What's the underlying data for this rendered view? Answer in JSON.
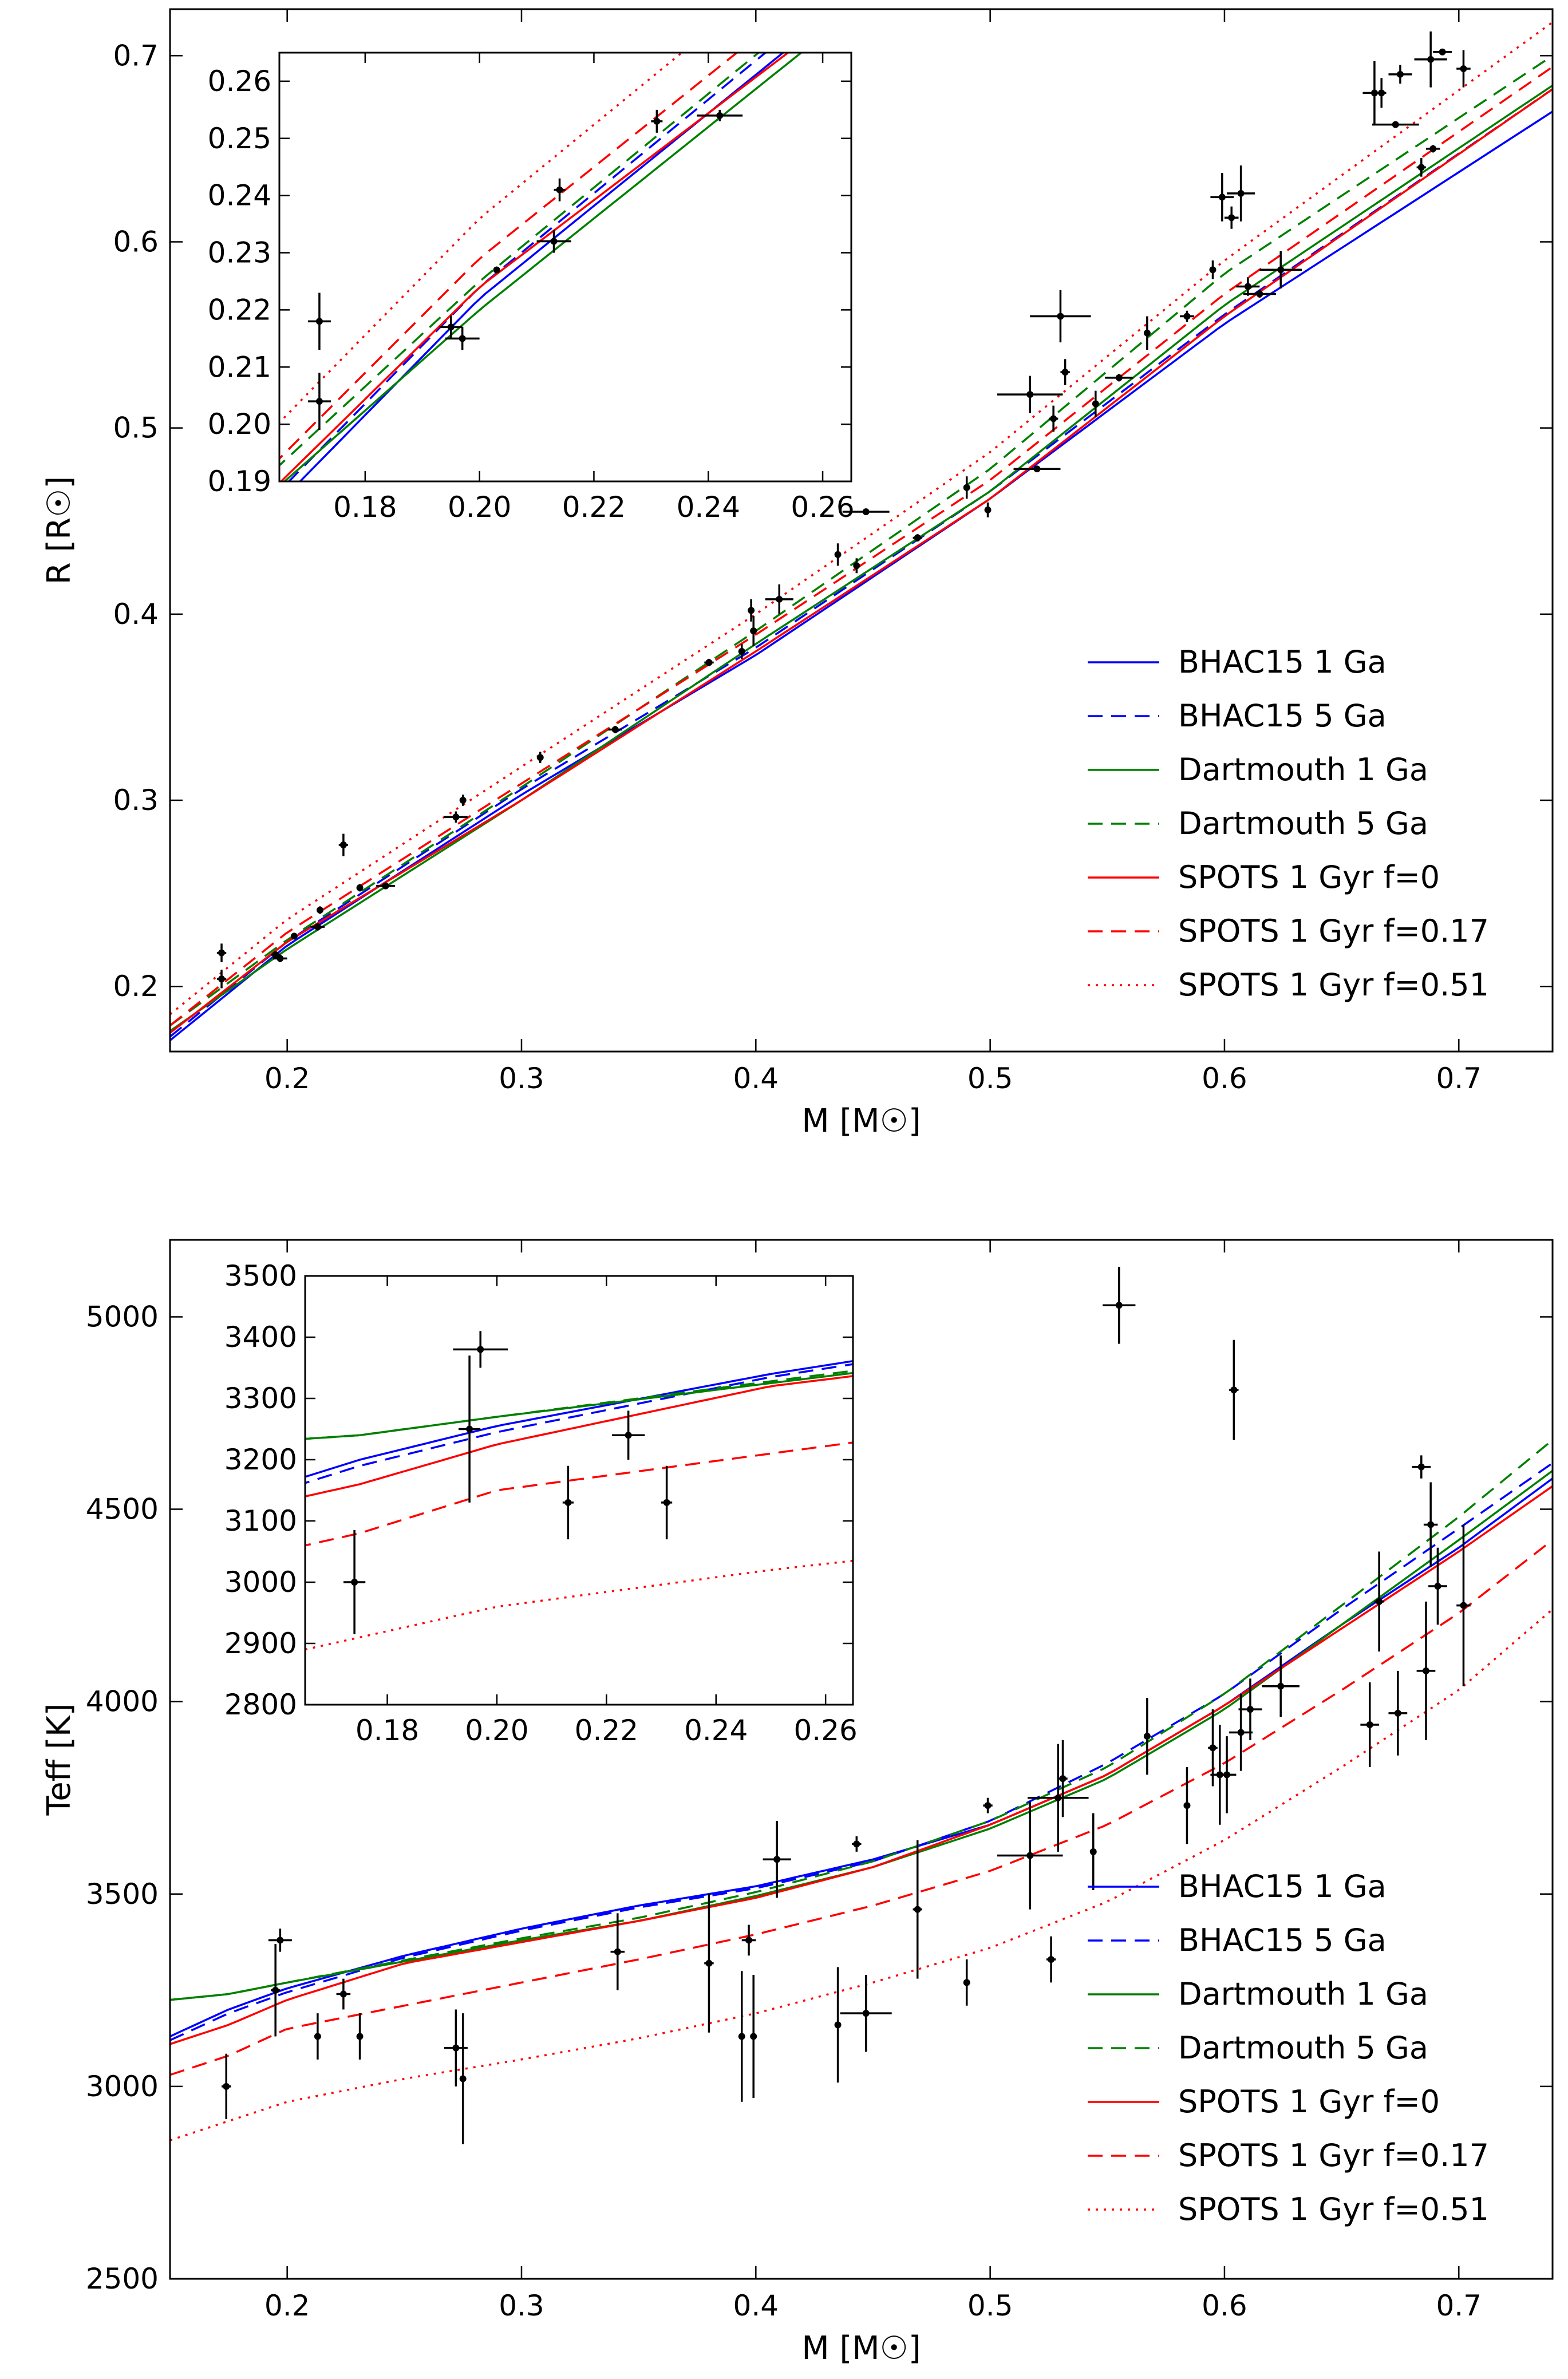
{
  "chart_data": [
    {
      "type": "line",
      "xlabel": "M [M☉]",
      "ylabel": "R [R☉]",
      "xlim": [
        0.15,
        0.74
      ],
      "ylim": [
        0.165,
        0.725
      ],
      "xticks": [
        "0.2",
        "0.3",
        "0.4",
        "0.5",
        "0.6",
        "0.7"
      ],
      "yticks": [
        "0.2",
        "0.3",
        "0.4",
        "0.5",
        "0.6",
        "0.7"
      ],
      "legend_position": "lower-right",
      "legend": [
        "BHAC15 1 Ga",
        "BHAC15 5 Ga",
        "Dartmouth 1 Ga",
        "Dartmouth 5 Ga",
        "SPOTS 1 Gyr f=0",
        "SPOTS 1 Gyr f=0.17",
        "SPOTS 1 Gyr f=0.51"
      ],
      "series": [
        {
          "color": "#0000ff",
          "style": "solid",
          "x": [
            0.15,
            0.2,
            0.3,
            0.4,
            0.5,
            0.6,
            0.74
          ],
          "y": [
            0.171,
            0.222,
            0.303,
            0.378,
            0.462,
            0.556,
            0.67
          ]
        },
        {
          "color": "#0000ff",
          "style": "dashed",
          "x": [
            0.15,
            0.2,
            0.3,
            0.4,
            0.5,
            0.6,
            0.74
          ],
          "y": [
            0.173,
            0.224,
            0.306,
            0.382,
            0.466,
            0.561,
            0.682
          ]
        },
        {
          "color": "#008000",
          "style": "solid",
          "x": [
            0.15,
            0.2,
            0.3,
            0.4,
            0.5,
            0.6,
            0.74
          ],
          "y": [
            0.176,
            0.22,
            0.3,
            0.384,
            0.466,
            0.566,
            0.684
          ]
        },
        {
          "color": "#008000",
          "style": "dashed",
          "x": [
            0.15,
            0.2,
            0.3,
            0.4,
            0.5,
            0.6,
            0.74
          ],
          "y": [
            0.179,
            0.225,
            0.307,
            0.391,
            0.478,
            0.583,
            0.7
          ]
        },
        {
          "color": "#ff0000",
          "style": "solid",
          "x": [
            0.15,
            0.2,
            0.3,
            0.4,
            0.5,
            0.6,
            0.74
          ],
          "y": [
            0.175,
            0.224,
            0.3,
            0.38,
            0.462,
            0.56,
            0.682
          ]
        },
        {
          "color": "#ff0000",
          "style": "dashed",
          "x": [
            0.15,
            0.2,
            0.3,
            0.4,
            0.5,
            0.6,
            0.74
          ],
          "y": [
            0.179,
            0.229,
            0.309,
            0.389,
            0.472,
            0.572,
            0.694
          ]
        },
        {
          "color": "#ff0000",
          "style": "dotted",
          "x": [
            0.15,
            0.2,
            0.3,
            0.4,
            0.5,
            0.6,
            0.74
          ],
          "y": [
            0.185,
            0.236,
            0.318,
            0.4,
            0.487,
            0.59,
            0.718
          ]
        }
      ],
      "points": [
        {
          "x": 0.172,
          "y": 0.218,
          "ex": 0.002,
          "ey": 0.005
        },
        {
          "x": 0.172,
          "y": 0.204,
          "ex": 0.002,
          "ey": 0.005
        },
        {
          "x": 0.195,
          "y": 0.217,
          "ex": 0.002,
          "ey": 0.002
        },
        {
          "x": 0.197,
          "y": 0.215,
          "ex": 0.003,
          "ey": 0.002
        },
        {
          "x": 0.203,
          "y": 0.227,
          "ex": 0.0,
          "ey": 0.0
        },
        {
          "x": 0.213,
          "y": 0.232,
          "ex": 0.003,
          "ey": 0.002
        },
        {
          "x": 0.214,
          "y": 0.241,
          "ex": 0.001,
          "ey": 0.002
        },
        {
          "x": 0.224,
          "y": 0.276,
          "ex": 0.002,
          "ey": 0.006
        },
        {
          "x": 0.231,
          "y": 0.253,
          "ex": 0.001,
          "ey": 0.002
        },
        {
          "x": 0.242,
          "y": 0.254,
          "ex": 0.004,
          "ey": 0.001
        },
        {
          "x": 0.272,
          "y": 0.291,
          "ex": 0.005,
          "ey": 0.003
        },
        {
          "x": 0.275,
          "y": 0.3,
          "ex": 0.001,
          "ey": 0.003
        },
        {
          "x": 0.308,
          "y": 0.323,
          "ex": 0.001,
          "ey": 0.003
        },
        {
          "x": 0.34,
          "y": 0.338,
          "ex": 0.003,
          "ey": 0.002
        },
        {
          "x": 0.38,
          "y": 0.374,
          "ex": 0.002,
          "ey": 0.002
        },
        {
          "x": 0.394,
          "y": 0.38,
          "ex": 0.001,
          "ey": 0.004
        },
        {
          "x": 0.398,
          "y": 0.402,
          "ex": 0.001,
          "ey": 0.006
        },
        {
          "x": 0.399,
          "y": 0.391,
          "ex": 0.001,
          "ey": 0.008
        },
        {
          "x": 0.41,
          "y": 0.408,
          "ex": 0.006,
          "ey": 0.008
        },
        {
          "x": 0.435,
          "y": 0.432,
          "ex": 0.001,
          "ey": 0.006
        },
        {
          "x": 0.443,
          "y": 0.426,
          "ex": 0.001,
          "ey": 0.004
        },
        {
          "x": 0.447,
          "y": 0.455,
          "ex": 0.01,
          "ey": 0.001
        },
        {
          "x": 0.469,
          "y": 0.441,
          "ex": 0.002,
          "ey": 0.002
        },
        {
          "x": 0.49,
          "y": 0.468,
          "ex": 0.001,
          "ey": 0.006
        },
        {
          "x": 0.499,
          "y": 0.456,
          "ex": 0.001,
          "ey": 0.004
        },
        {
          "x": 0.517,
          "y": 0.518,
          "ex": 0.014,
          "ey": 0.01
        },
        {
          "x": 0.52,
          "y": 0.478,
          "ex": 0.01,
          "ey": 0.001
        },
        {
          "x": 0.527,
          "y": 0.505,
          "ex": 0.002,
          "ey": 0.007
        },
        {
          "x": 0.53,
          "y": 0.56,
          "ex": 0.013,
          "ey": 0.014
        },
        {
          "x": 0.532,
          "y": 0.53,
          "ex": 0.002,
          "ey": 0.007
        },
        {
          "x": 0.545,
          "y": 0.513,
          "ex": 0.001,
          "ey": 0.007
        },
        {
          "x": 0.555,
          "y": 0.527,
          "ex": 0.006,
          "ey": 0.002
        },
        {
          "x": 0.567,
          "y": 0.551,
          "ex": 0.001,
          "ey": 0.009
        },
        {
          "x": 0.584,
          "y": 0.56,
          "ex": 0.003,
          "ey": 0.003
        },
        {
          "x": 0.595,
          "y": 0.585,
          "ex": 0.001,
          "ey": 0.005
        },
        {
          "x": 0.599,
          "y": 0.624,
          "ex": 0.005,
          "ey": 0.013
        },
        {
          "x": 0.603,
          "y": 0.613,
          "ex": 0.003,
          "ey": 0.006
        },
        {
          "x": 0.607,
          "y": 0.626,
          "ex": 0.006,
          "ey": 0.015
        },
        {
          "x": 0.61,
          "y": 0.576,
          "ex": 0.005,
          "ey": 0.005
        },
        {
          "x": 0.615,
          "y": 0.572,
          "ex": 0.007,
          "ey": 0.002
        },
        {
          "x": 0.624,
          "y": 0.585,
          "ex": 0.009,
          "ey": 0.01
        },
        {
          "x": 0.664,
          "y": 0.68,
          "ex": 0.005,
          "ey": 0.017
        },
        {
          "x": 0.667,
          "y": 0.68,
          "ex": 0.002,
          "ey": 0.008
        },
        {
          "x": 0.673,
          "y": 0.663,
          "ex": 0.01,
          "ey": 0.001
        },
        {
          "x": 0.675,
          "y": 0.69,
          "ex": 0.005,
          "ey": 0.005
        },
        {
          "x": 0.684,
          "y": 0.64,
          "ex": 0.002,
          "ey": 0.005
        },
        {
          "x": 0.688,
          "y": 0.698,
          "ex": 0.007,
          "ey": 0.015
        },
        {
          "x": 0.689,
          "y": 0.65,
          "ex": 0.003,
          "ey": 0.002
        },
        {
          "x": 0.693,
          "y": 0.702,
          "ex": 0.004,
          "ey": 0.001
        },
        {
          "x": 0.702,
          "y": 0.693,
          "ex": 0.003,
          "ey": 0.01
        }
      ],
      "inset": {
        "xlim": [
          0.165,
          0.265
        ],
        "ylim": [
          0.19,
          0.265
        ],
        "xticks": [
          "0.18",
          "0.20",
          "0.22",
          "0.24",
          "0.26"
        ],
        "yticks": [
          "0.19",
          "0.20",
          "0.21",
          "0.22",
          "0.23",
          "0.24",
          "0.25",
          "0.26"
        ]
      }
    },
    {
      "type": "line",
      "xlabel": "M [M☉]",
      "ylabel": "Teff [K]",
      "xlim": [
        0.15,
        0.74
      ],
      "ylim": [
        2500,
        5200
      ],
      "xticks": [
        "0.2",
        "0.3",
        "0.4",
        "0.5",
        "0.6",
        "0.7"
      ],
      "yticks": [
        "2500",
        "3000",
        "3500",
        "4000",
        "4500",
        "5000"
      ],
      "legend_position": "lower-right",
      "legend": [
        "BHAC15 1 Ga",
        "BHAC15 5 Ga",
        "Dartmouth 1 Ga",
        "Dartmouth 5 Ga",
        "SPOTS 1 Gyr f=0",
        "SPOTS 1 Gyr f=0.17",
        "SPOTS 1 Gyr f=0.51"
      ],
      "series": [
        {
          "color": "#0000ff",
          "style": "solid",
          "x": [
            0.15,
            0.175,
            0.2,
            0.25,
            0.3,
            0.35,
            0.4,
            0.45,
            0.5,
            0.55,
            0.6,
            0.65,
            0.7,
            0.74
          ],
          "y": [
            3130,
            3200,
            3255,
            3340,
            3410,
            3470,
            3520,
            3590,
            3680,
            3810,
            3990,
            4200,
            4400,
            4580
          ]
        },
        {
          "color": "#0000ff",
          "style": "dashed",
          "x": [
            0.15,
            0.175,
            0.2,
            0.25,
            0.3,
            0.35,
            0.4,
            0.45,
            0.5,
            0.55,
            0.6,
            0.65,
            0.7,
            0.74
          ],
          "y": [
            3120,
            3190,
            3245,
            3335,
            3405,
            3465,
            3515,
            3585,
            3690,
            3840,
            4020,
            4240,
            4450,
            4620
          ]
        },
        {
          "color": "#008000",
          "style": "solid",
          "x": [
            0.15,
            0.175,
            0.2,
            0.25,
            0.3,
            0.35,
            0.4,
            0.45,
            0.5,
            0.55,
            0.6,
            0.65,
            0.7,
            0.74
          ],
          "y": [
            3225,
            3240,
            3270,
            3325,
            3380,
            3430,
            3495,
            3570,
            3670,
            3800,
            3980,
            4200,
            4420,
            4600
          ]
        },
        {
          "color": "#008000",
          "style": "dashed",
          "x": [
            0.15,
            0.175,
            0.2,
            0.25,
            0.3,
            0.35,
            0.4,
            0.45,
            0.5,
            0.55,
            0.6,
            0.65,
            0.7,
            0.74
          ],
          "y": [
            3225,
            3240,
            3270,
            3328,
            3385,
            3438,
            3505,
            3585,
            3690,
            3830,
            4020,
            4250,
            4480,
            4680
          ]
        },
        {
          "color": "#ff0000",
          "style": "solid",
          "x": [
            0.15,
            0.175,
            0.2,
            0.25,
            0.3,
            0.35,
            0.4,
            0.45,
            0.5,
            0.55,
            0.6,
            0.65,
            0.7,
            0.74
          ],
          "y": [
            3110,
            3160,
            3225,
            3320,
            3375,
            3430,
            3490,
            3570,
            3680,
            3810,
            3990,
            4190,
            4390,
            4560
          ]
        },
        {
          "color": "#ff0000",
          "style": "dashed",
          "x": [
            0.15,
            0.175,
            0.2,
            0.25,
            0.3,
            0.35,
            0.4,
            0.45,
            0.5,
            0.55,
            0.6,
            0.65,
            0.7,
            0.74
          ],
          "y": [
            3030,
            3080,
            3150,
            3210,
            3270,
            3330,
            3395,
            3470,
            3560,
            3680,
            3840,
            4030,
            4230,
            4420
          ]
        },
        {
          "color": "#ff0000",
          "style": "dotted",
          "x": [
            0.15,
            0.175,
            0.2,
            0.25,
            0.3,
            0.35,
            0.4,
            0.45,
            0.5,
            0.55,
            0.6,
            0.65,
            0.7,
            0.74
          ],
          "y": [
            2860,
            2910,
            2960,
            3020,
            3070,
            3125,
            3190,
            3270,
            3360,
            3480,
            3640,
            3830,
            4030,
            4240
          ]
        }
      ],
      "points": [
        {
          "x": 0.174,
          "y": 3000,
          "ex": 0.002,
          "ey": 85
        },
        {
          "x": 0.195,
          "y": 3250,
          "ex": 0.002,
          "ey": 120
        },
        {
          "x": 0.197,
          "y": 3380,
          "ex": 0.005,
          "ey": 30
        },
        {
          "x": 0.213,
          "y": 3130,
          "ex": 0.001,
          "ey": 60
        },
        {
          "x": 0.224,
          "y": 3240,
          "ex": 0.003,
          "ey": 40
        },
        {
          "x": 0.231,
          "y": 3130,
          "ex": 0.001,
          "ey": 60
        },
        {
          "x": 0.272,
          "y": 3100,
          "ex": 0.005,
          "ey": 100
        },
        {
          "x": 0.275,
          "y": 3020,
          "ex": 0.001,
          "ey": 170
        },
        {
          "x": 0.341,
          "y": 3350,
          "ex": 0.003,
          "ey": 100
        },
        {
          "x": 0.38,
          "y": 3320,
          "ex": 0.002,
          "ey": 180
        },
        {
          "x": 0.394,
          "y": 3130,
          "ex": 0.001,
          "ey": 170
        },
        {
          "x": 0.397,
          "y": 3380,
          "ex": 0.003,
          "ey": 40
        },
        {
          "x": 0.399,
          "y": 3130,
          "ex": 0.001,
          "ey": 160
        },
        {
          "x": 0.409,
          "y": 3590,
          "ex": 0.006,
          "ey": 100
        },
        {
          "x": 0.435,
          "y": 3160,
          "ex": 0.001,
          "ey": 150
        },
        {
          "x": 0.443,
          "y": 3630,
          "ex": 0.002,
          "ey": 20
        },
        {
          "x": 0.447,
          "y": 3190,
          "ex": 0.011,
          "ey": 100
        },
        {
          "x": 0.469,
          "y": 3460,
          "ex": 0.002,
          "ey": 180
        },
        {
          "x": 0.49,
          "y": 3270,
          "ex": 0.001,
          "ey": 60
        },
        {
          "x": 0.499,
          "y": 3730,
          "ex": 0.002,
          "ey": 20
        },
        {
          "x": 0.517,
          "y": 3600,
          "ex": 0.014,
          "ey": 140
        },
        {
          "x": 0.526,
          "y": 3330,
          "ex": 0.002,
          "ey": 60
        },
        {
          "x": 0.529,
          "y": 3750,
          "ex": 0.013,
          "ey": 140
        },
        {
          "x": 0.531,
          "y": 3800,
          "ex": 0.002,
          "ey": 100
        },
        {
          "x": 0.544,
          "y": 3610,
          "ex": 0.001,
          "ey": 100
        },
        {
          "x": 0.555,
          "y": 5030,
          "ex": 0.007,
          "ey": 100
        },
        {
          "x": 0.567,
          "y": 3910,
          "ex": 0.001,
          "ey": 100
        },
        {
          "x": 0.584,
          "y": 3730,
          "ex": 0.001,
          "ey": 100
        },
        {
          "x": 0.595,
          "y": 3880,
          "ex": 0.002,
          "ey": 100
        },
        {
          "x": 0.598,
          "y": 3810,
          "ex": 0.004,
          "ey": 130
        },
        {
          "x": 0.601,
          "y": 3810,
          "ex": 0.004,
          "ey": 100
        },
        {
          "x": 0.604,
          "y": 4810,
          "ex": 0.002,
          "ey": 130
        },
        {
          "x": 0.607,
          "y": 3920,
          "ex": 0.005,
          "ey": 100
        },
        {
          "x": 0.611,
          "y": 3980,
          "ex": 0.005,
          "ey": 80
        },
        {
          "x": 0.624,
          "y": 4040,
          "ex": 0.008,
          "ey": 80
        },
        {
          "x": 0.662,
          "y": 3940,
          "ex": 0.004,
          "ey": 110
        },
        {
          "x": 0.666,
          "y": 4260,
          "ex": 0.002,
          "ey": 130
        },
        {
          "x": 0.674,
          "y": 3970,
          "ex": 0.004,
          "ey": 110
        },
        {
          "x": 0.684,
          "y": 4610,
          "ex": 0.004,
          "ey": 30
        },
        {
          "x": 0.686,
          "y": 4080,
          "ex": 0.004,
          "ey": 180
        },
        {
          "x": 0.688,
          "y": 4460,
          "ex": 0.003,
          "ey": 110
        },
        {
          "x": 0.691,
          "y": 4300,
          "ex": 0.004,
          "ey": 100
        },
        {
          "x": 0.702,
          "y": 4250,
          "ex": 0.003,
          "ey": 210
        }
      ],
      "inset": {
        "xlim": [
          0.165,
          0.265
        ],
        "ylim": [
          2800,
          3500
        ],
        "xticks": [
          "0.18",
          "0.20",
          "0.22",
          "0.24",
          "0.26"
        ],
        "yticks": [
          "2800",
          "2900",
          "3000",
          "3100",
          "3200",
          "3300",
          "3400",
          "3500"
        ]
      }
    }
  ]
}
